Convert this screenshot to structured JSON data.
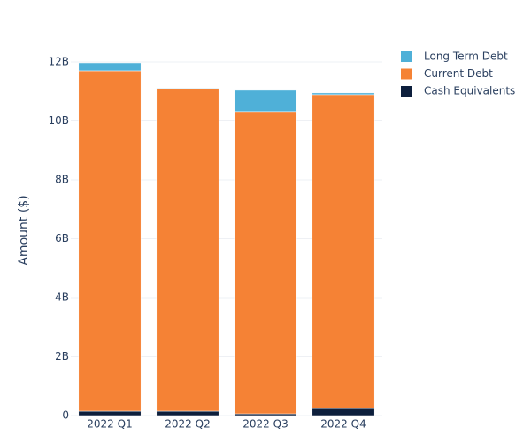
{
  "chart_data": {
    "type": "stacked_bar",
    "y_label": "Amount ($)",
    "categories": [
      "2022 Q1",
      "2022 Q2",
      "2022 Q3",
      "2022 Q4"
    ],
    "series": [
      {
        "name": "Cash Equivalents",
        "color": "#0d1f3c",
        "values": [
          150000000,
          150000000,
          60000000,
          240000000
        ]
      },
      {
        "name": "Current Debt",
        "color": "#f58235",
        "values": [
          11550000000,
          10950000000,
          10260000000,
          10650000000
        ]
      },
      {
        "name": "Long Term Debt",
        "color": "#4fb0d8",
        "values": [
          270000000,
          20000000,
          720000000,
          60000000
        ]
      }
    ],
    "ylim": [
      0,
      12300000000
    ],
    "yticks": [
      0,
      {
        "value": 2000000000,
        "label": "2B"
      },
      {
        "value": 4000000000,
        "label": "4B"
      },
      {
        "value": 6000000000,
        "label": "6B"
      },
      {
        "value": 8000000000,
        "label": "8B"
      },
      {
        "value": 10000000000,
        "label": "10B"
      },
      {
        "value": 12000000000,
        "label": "12B"
      }
    ],
    "grid": true
  }
}
